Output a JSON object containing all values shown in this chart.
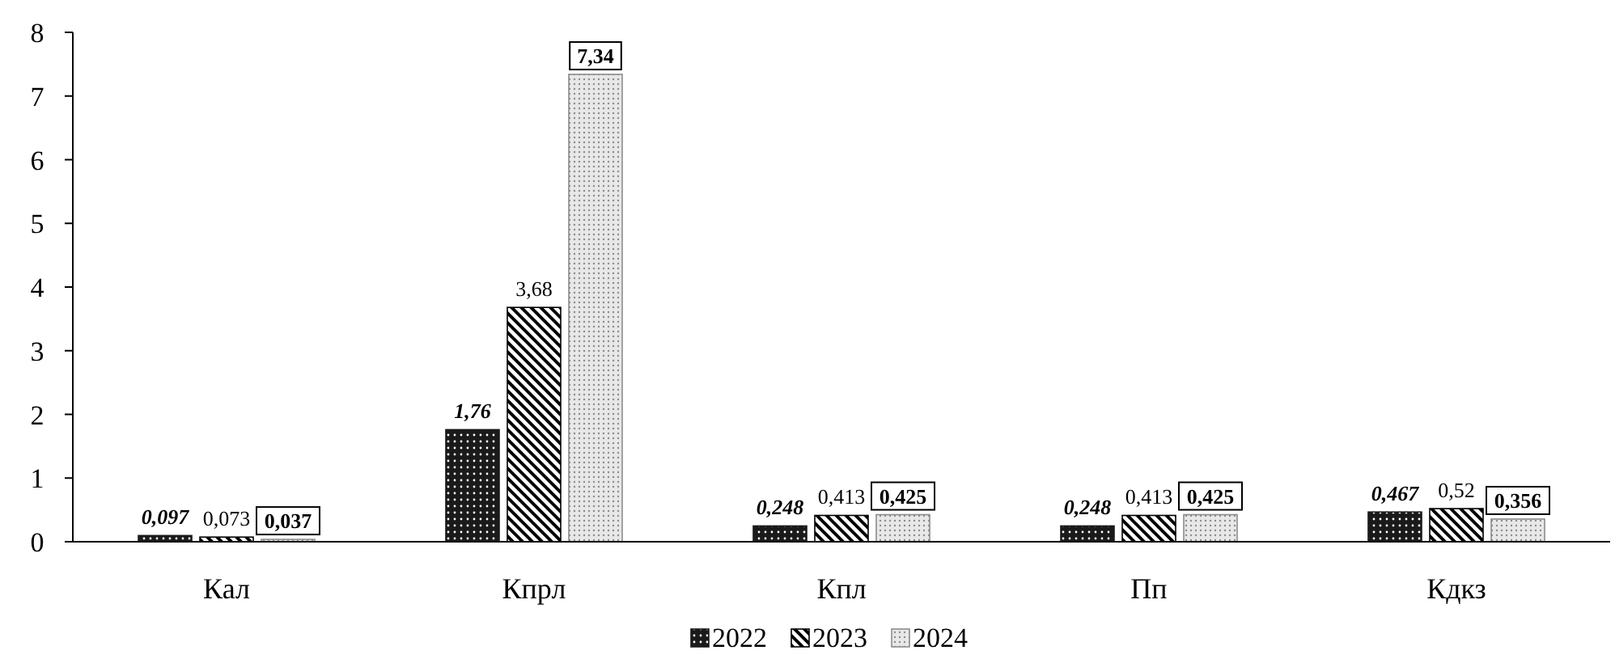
{
  "chart_data": {
    "type": "bar",
    "categories": [
      "Кал",
      "Кпрл",
      "Кпл",
      "Пп",
      "Кдкз"
    ],
    "series": [
      {
        "name": "2022",
        "color": "#1a1a1a",
        "values": [
          0.097,
          1.76,
          0.248,
          0.248,
          0.467
        ],
        "value_labels": [
          "0,097",
          "1,76",
          "0,248",
          "0,248",
          "0,467"
        ]
      },
      {
        "name": "2023",
        "color": "#000000",
        "values": [
          0.073,
          3.68,
          0.413,
          0.413,
          0.52
        ],
        "value_labels": [
          "0,073",
          "3,68",
          "0,413",
          "0,413",
          "0,52"
        ]
      },
      {
        "name": "2024",
        "color": "#8c8c8c",
        "values": [
          0.037,
          7.34,
          0.425,
          0.425,
          0.356
        ],
        "value_labels": [
          "0,037",
          "7,34",
          "0,425",
          "0,425",
          "0,356"
        ]
      }
    ],
    "ylim": [
      0,
      8
    ],
    "yticks": [
      0,
      1,
      2,
      3,
      4,
      5,
      6,
      7,
      8
    ],
    "grid": false,
    "legend": "bottom"
  }
}
